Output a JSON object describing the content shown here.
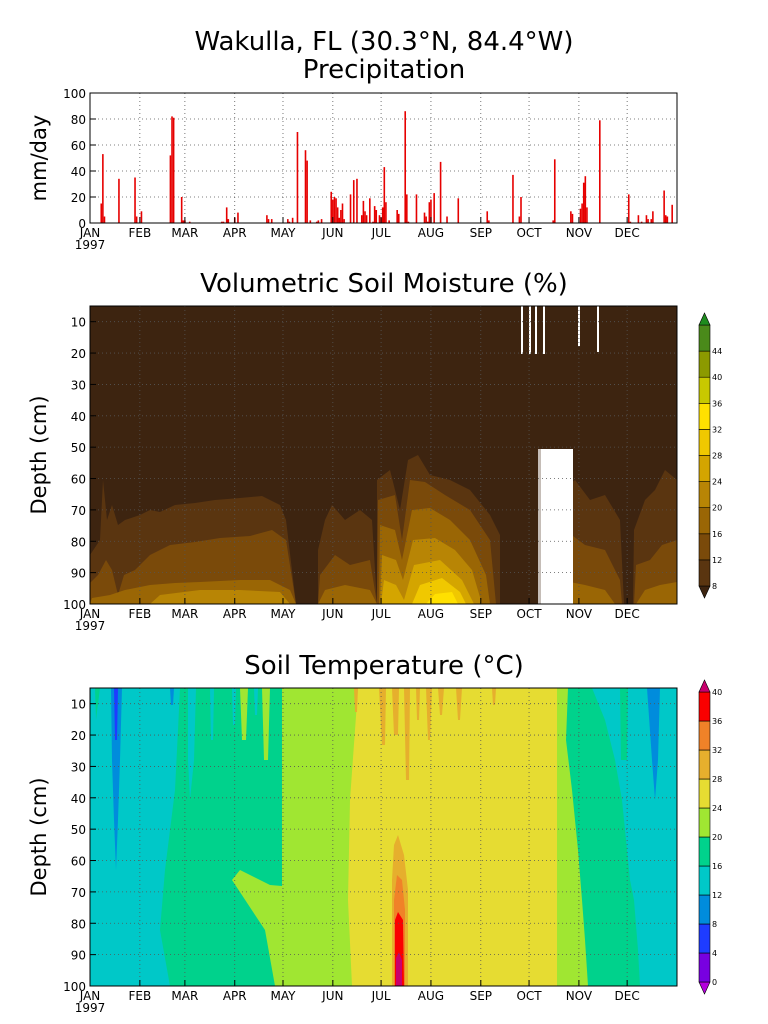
{
  "header": {
    "title": "Wakulla, FL   (30.3°N, 84.4°W)",
    "subtitle": "Precipitation"
  },
  "months": [
    "JAN",
    "FEB",
    "MAR",
    "APR",
    "MAY",
    "JUN",
    "JUL",
    "AUG",
    "SEP",
    "OCT",
    "NOV",
    "DEC"
  ],
  "year": "1997",
  "chart_data": [
    {
      "type": "bar",
      "title": "Precipitation",
      "ylabel": "mm/day",
      "xlim": [
        0,
        365
      ],
      "ylim": [
        0,
        100
      ],
      "yticks": [
        0,
        20,
        40,
        60,
        80,
        100
      ],
      "grid": true,
      "color": "#e60000",
      "x": [
        7,
        8,
        9,
        18,
        28,
        29,
        32,
        50,
        51,
        52,
        57,
        58,
        59,
        62,
        82,
        83,
        85,
        86,
        90,
        92,
        110,
        111,
        113,
        123,
        124,
        126,
        129,
        134,
        135,
        137,
        141,
        142,
        144,
        150,
        151,
        152,
        153,
        154,
        155,
        156,
        157,
        158,
        162,
        164,
        166,
        169,
        170,
        171,
        172,
        174,
        176,
        177,
        178,
        180,
        181,
        182,
        183,
        184,
        186,
        191,
        192,
        196,
        197,
        198,
        203,
        208,
        209,
        210,
        211,
        212,
        214,
        218,
        222,
        229,
        247,
        248,
        263,
        267,
        268,
        288,
        289,
        299,
        300,
        305,
        306,
        307,
        308,
        309,
        317,
        335,
        336,
        341,
        343,
        346,
        347,
        349,
        350,
        357,
        358,
        359,
        362
      ],
      "values": [
        15,
        53,
        5,
        34,
        35,
        5,
        9,
        52,
        82,
        81,
        20,
        2,
        2,
        1,
        1,
        1,
        12,
        3,
        4,
        8,
        6,
        3,
        3,
        3,
        1,
        4,
        70,
        56,
        48,
        2,
        1,
        2,
        3,
        24,
        18,
        20,
        19,
        12,
        4,
        10,
        15,
        3,
        22,
        33,
        34,
        6,
        17,
        9,
        6,
        19,
        1,
        13,
        10,
        6,
        4,
        12,
        43,
        16,
        2,
        10,
        7,
        86,
        22,
        1,
        22,
        8,
        5,
        1,
        16,
        18,
        23,
        47,
        5,
        19,
        9,
        2,
        37,
        5,
        20,
        2,
        49,
        9,
        7,
        11,
        15,
        31,
        36,
        12,
        79,
        22,
        1,
        6,
        1,
        6,
        3,
        3,
        9,
        25,
        6,
        5,
        14
      ]
    },
    {
      "type": "heatmap",
      "title": "Volumetric Soil Moisture (%)",
      "ylabel": "Depth (cm)",
      "xlim": [
        0,
        365
      ],
      "ylim": [
        100,
        5
      ],
      "yticks": [
        10,
        20,
        30,
        40,
        50,
        60,
        70,
        80,
        90,
        100
      ],
      "grid": true,
      "colorbar_labels": [
        "8",
        "12",
        "16",
        "20",
        "24",
        "28",
        "32",
        "36",
        "40",
        "44"
      ],
      "colorbar_colors": [
        "#3d2410",
        "#5a3510",
        "#7a4a0a",
        "#9a6605",
        "#b88505",
        "#d4a500",
        "#f0c800",
        "#ffe000",
        "#c8c800",
        "#8c9a00",
        "#4a8a1a",
        "#1e8c1e"
      ]
    },
    {
      "type": "heatmap",
      "title": "Soil Temperature (°C)",
      "ylabel": "Depth (cm)",
      "xlim": [
        0,
        365
      ],
      "ylim": [
        100,
        5
      ],
      "yticks": [
        10,
        20,
        30,
        40,
        50,
        60,
        70,
        80,
        90,
        100
      ],
      "grid": true,
      "colorbar_labels": [
        "0",
        "4",
        "8",
        "12",
        "16",
        "20",
        "24",
        "28",
        "32",
        "36",
        "40"
      ],
      "colorbar_colors": [
        "#b400dc",
        "#7800e0",
        "#1e3cff",
        "#008cdc",
        "#00c8c8",
        "#00d28c",
        "#a0e632",
        "#e6dc32",
        "#e6af2d",
        "#f08228",
        "#fa0000",
        "#c8006e"
      ]
    }
  ]
}
